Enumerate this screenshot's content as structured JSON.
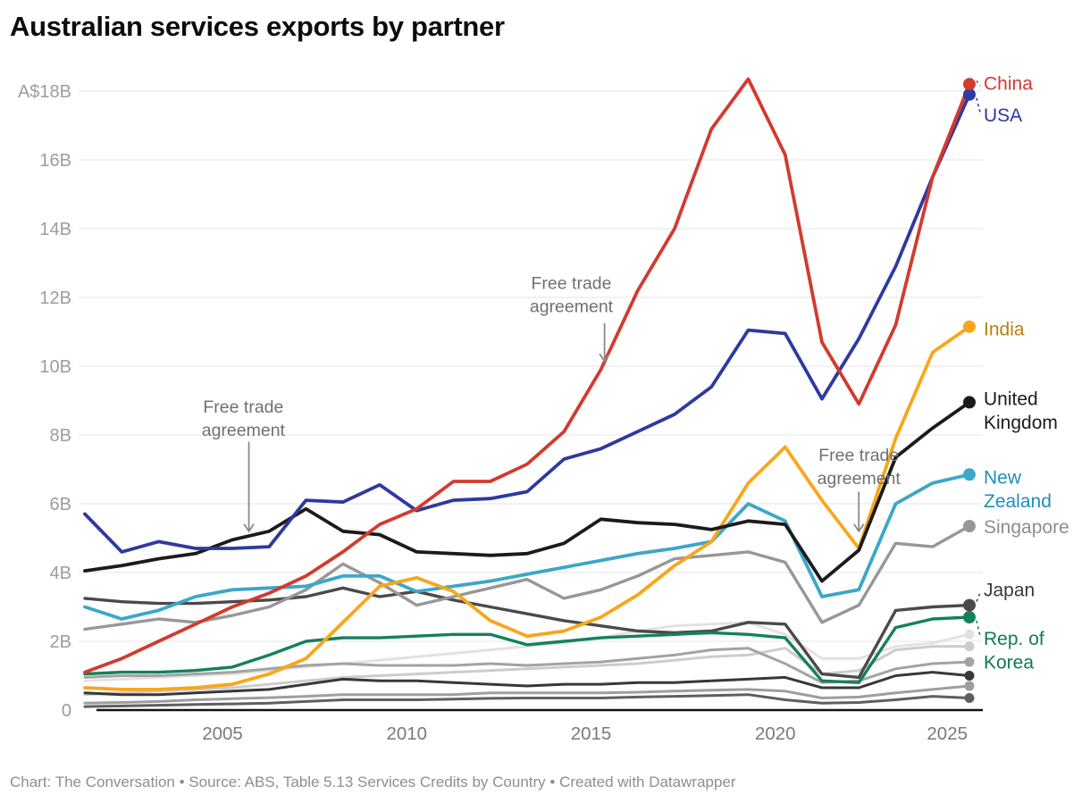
{
  "title": "Australian services exports by partner",
  "footer": "Chart: The Conversation • Source: ABS, Table 5.13 Services Credits by Country • Created with Datawrapper",
  "chart_data": {
    "type": "line",
    "title": "Australian services exports by partner",
    "unit": "A$ billions",
    "x": [
      2001,
      2002,
      2003,
      2004,
      2005,
      2006,
      2007,
      2008,
      2009,
      2010,
      2011,
      2012,
      2013,
      2014,
      2015,
      2016,
      2017,
      2018,
      2019,
      2020,
      2021,
      2022,
      2023,
      2024,
      2025
    ],
    "x_ticks": [
      2005,
      2010,
      2015,
      2020,
      2025
    ],
    "xlim": [
      2001,
      2025
    ],
    "ylim": [
      0,
      18.4
    ],
    "grid": "horizontal",
    "legend_position": "right-of-line-ends",
    "y_ticks": [
      {
        "label": "A$18B",
        "value": 18
      },
      {
        "label": "16B",
        "value": 16
      },
      {
        "label": "14B",
        "value": 14
      },
      {
        "label": "12B",
        "value": 12
      },
      {
        "label": "10B",
        "value": 10
      },
      {
        "label": "8B",
        "value": 8
      },
      {
        "label": "6B",
        "value": 6
      },
      {
        "label": "4B",
        "value": 4
      },
      {
        "label": "2B",
        "value": 2
      },
      {
        "label": "0",
        "value": 0
      }
    ],
    "series": [
      {
        "id": "other-1",
        "label_lines": null,
        "color": "#e2e2e2",
        "label_color": null,
        "leader": null,
        "values": [
          0.85,
          0.9,
          0.95,
          1.0,
          1.05,
          1.15,
          1.25,
          1.35,
          1.45,
          1.55,
          1.65,
          1.75,
          1.85,
          1.95,
          2.1,
          2.3,
          2.45,
          2.5,
          2.55,
          2.2,
          1.5,
          1.5,
          1.85,
          1.95,
          2.2
        ]
      },
      {
        "id": "other-2",
        "label_lines": null,
        "color": "#cccccc",
        "label_color": null,
        "leader": null,
        "values": [
          0.45,
          0.5,
          0.55,
          0.6,
          0.65,
          0.75,
          0.85,
          0.95,
          1.0,
          1.05,
          1.1,
          1.15,
          1.2,
          1.25,
          1.3,
          1.35,
          1.45,
          1.55,
          1.6,
          1.8,
          1.05,
          1.15,
          1.75,
          1.85,
          1.85
        ]
      },
      {
        "id": "other-3",
        "label_lines": null,
        "color": "#a3a3a3",
        "label_color": null,
        "leader": null,
        "values": [
          0.95,
          1.0,
          1.0,
          1.05,
          1.1,
          1.2,
          1.3,
          1.35,
          1.3,
          1.3,
          1.3,
          1.35,
          1.3,
          1.35,
          1.4,
          1.5,
          1.6,
          1.75,
          1.8,
          1.35,
          0.8,
          0.85,
          1.2,
          1.35,
          1.4
        ]
      },
      {
        "id": "other-5",
        "label_lines": null,
        "color": "#9e9e9e",
        "label_color": null,
        "leader": null,
        "values": [
          0.2,
          0.22,
          0.25,
          0.3,
          0.33,
          0.36,
          0.4,
          0.45,
          0.45,
          0.45,
          0.45,
          0.5,
          0.5,
          0.5,
          0.5,
          0.52,
          0.55,
          0.58,
          0.6,
          0.55,
          0.35,
          0.38,
          0.5,
          0.6,
          0.7
        ]
      },
      {
        "id": "other-6",
        "label_lines": null,
        "color": "#5f5f5f",
        "label_color": null,
        "leader": null,
        "values": [
          0.1,
          0.12,
          0.14,
          0.16,
          0.18,
          0.2,
          0.25,
          0.3,
          0.3,
          0.3,
          0.32,
          0.34,
          0.35,
          0.35,
          0.35,
          0.38,
          0.4,
          0.42,
          0.45,
          0.3,
          0.2,
          0.22,
          0.3,
          0.4,
          0.35
        ]
      },
      {
        "id": "other-4",
        "label_lines": null,
        "color": "#383838",
        "label_color": null,
        "leader": null,
        "values": [
          0.5,
          0.45,
          0.45,
          0.5,
          0.55,
          0.6,
          0.75,
          0.9,
          0.85,
          0.85,
          0.8,
          0.75,
          0.7,
          0.75,
          0.75,
          0.8,
          0.8,
          0.85,
          0.9,
          0.95,
          0.65,
          0.65,
          1.0,
          1.1,
          1.0
        ]
      },
      {
        "id": "japan",
        "label_lines": [
          "Japan"
        ],
        "color": "#4a4a4a",
        "label_color": "#3a3a3a",
        "leader": "up",
        "values": [
          3.25,
          3.15,
          3.1,
          3.1,
          3.15,
          3.2,
          3.3,
          3.55,
          3.3,
          3.45,
          3.2,
          3.0,
          2.8,
          2.6,
          2.45,
          2.3,
          2.25,
          2.3,
          2.55,
          2.5,
          1.05,
          0.95,
          2.9,
          3.0,
          3.05
        ]
      },
      {
        "id": "korea",
        "label_lines": [
          "Rep. of",
          "Korea"
        ],
        "color": "#15805c",
        "label_color": "#117a55",
        "leader": "down",
        "values": [
          1.05,
          1.1,
          1.1,
          1.15,
          1.25,
          1.6,
          2.0,
          2.1,
          2.1,
          2.15,
          2.2,
          2.2,
          1.9,
          2.0,
          2.1,
          2.15,
          2.2,
          2.25,
          2.2,
          2.1,
          0.85,
          0.8,
          2.4,
          2.65,
          2.7
        ]
      },
      {
        "id": "singapore",
        "label_lines": [
          "Singapore"
        ],
        "color": "#979797",
        "label_color": "#8d8d8d",
        "leader": null,
        "values": [
          2.35,
          2.5,
          2.65,
          2.55,
          2.75,
          3.0,
          3.5,
          4.25,
          3.7,
          3.05,
          3.3,
          3.55,
          3.8,
          3.25,
          3.5,
          3.9,
          4.4,
          4.5,
          4.6,
          4.3,
          2.55,
          3.05,
          4.85,
          4.75,
          5.35
        ]
      },
      {
        "id": "new-zealand",
        "label_lines": [
          "New",
          "Zealand"
        ],
        "color": "#3ba7c9",
        "label_color": "#1e8fba",
        "leader": null,
        "values": [
          3.0,
          2.65,
          2.9,
          3.3,
          3.5,
          3.55,
          3.6,
          3.9,
          3.9,
          3.45,
          3.6,
          3.75,
          3.95,
          4.15,
          4.35,
          4.55,
          4.7,
          4.9,
          6.0,
          5.5,
          3.3,
          3.5,
          6.0,
          6.6,
          6.85
        ]
      },
      {
        "id": "india",
        "label_lines": [
          "India"
        ],
        "color": "#f9a61a",
        "label_color": "#b9820d",
        "leader": null,
        "values": [
          0.65,
          0.6,
          0.6,
          0.65,
          0.75,
          1.05,
          1.5,
          2.55,
          3.6,
          3.85,
          3.45,
          2.6,
          2.15,
          2.3,
          2.7,
          3.35,
          4.2,
          4.9,
          6.6,
          7.65,
          6.1,
          4.7,
          7.9,
          10.4,
          11.15
        ]
      },
      {
        "id": "united-kingdom",
        "label_lines": [
          "United",
          "Kingdom"
        ],
        "color": "#1b1b1b",
        "label_color": "#1b1b1b",
        "leader": null,
        "values": [
          4.05,
          4.2,
          4.4,
          4.55,
          4.95,
          5.2,
          5.85,
          5.2,
          5.1,
          4.6,
          4.55,
          4.5,
          4.55,
          4.85,
          5.55,
          5.45,
          5.4,
          5.25,
          5.5,
          5.4,
          3.75,
          4.65,
          7.35,
          8.2,
          8.95
        ]
      },
      {
        "id": "usa",
        "label_lines": [
          "USA"
        ],
        "color": "#2d3a9e",
        "label_color": "#2d3a9e",
        "leader": "down",
        "values": [
          5.7,
          4.6,
          4.9,
          4.7,
          4.7,
          4.75,
          6.1,
          6.05,
          6.55,
          5.8,
          6.1,
          6.15,
          6.35,
          7.3,
          7.6,
          8.1,
          8.6,
          9.4,
          11.05,
          10.95,
          9.05,
          10.8,
          12.9,
          15.5,
          17.9
        ]
      },
      {
        "id": "china",
        "label_lines": [
          "China"
        ],
        "color": "#d23b2e",
        "label_color": "#d23b2e",
        "leader": "up",
        "values": [
          1.1,
          1.5,
          2.0,
          2.5,
          3.0,
          3.4,
          3.9,
          4.6,
          5.4,
          5.85,
          6.65,
          6.65,
          7.15,
          8.1,
          9.9,
          12.2,
          14.0,
          16.9,
          18.35,
          16.15,
          10.7,
          8.9,
          11.2,
          15.5,
          18.2
        ]
      }
    ],
    "annotations": [
      {
        "lines": [
          "Free trade",
          "agreement"
        ],
        "text_year": 2005.3,
        "text_value": 8.8,
        "arrow_year": 2005.45,
        "arrow_from_value": 7.8,
        "arrow_to_value": 5.2
      },
      {
        "lines": [
          "Free trade",
          "agreement"
        ],
        "text_year": 2014.2,
        "text_value": 12.4,
        "arrow_year": 2015.1,
        "arrow_from_value": 11.25,
        "arrow_to_value": 10.15
      },
      {
        "lines": [
          "Free trade",
          "agreement"
        ],
        "text_year": 2022.0,
        "text_value": 7.4,
        "arrow_year": 2022.0,
        "arrow_from_value": 6.35,
        "arrow_to_value": 5.2
      }
    ]
  }
}
